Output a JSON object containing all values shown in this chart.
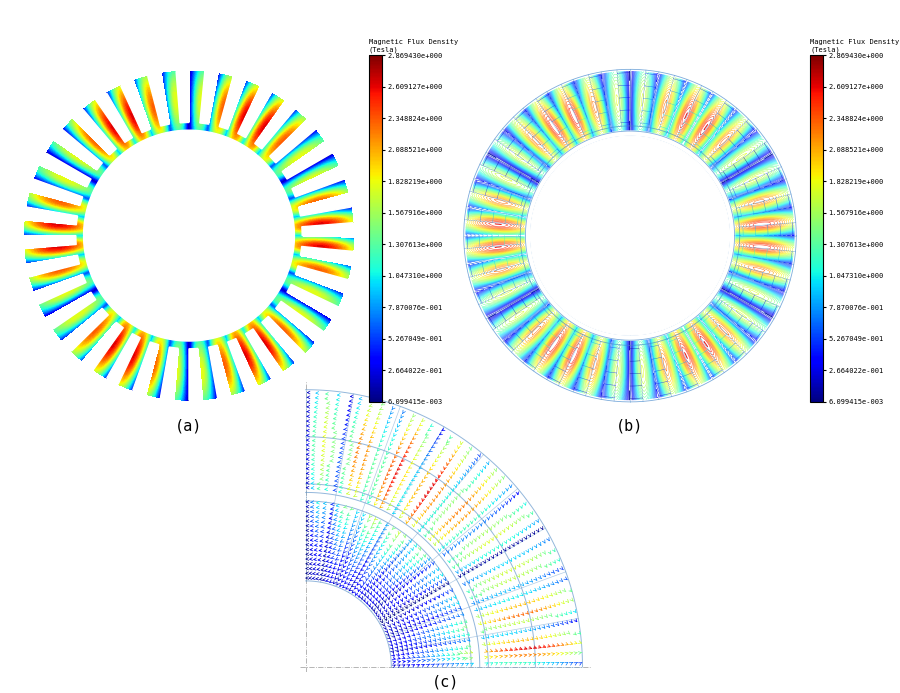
{
  "colorbar_labels": [
    "2.869430e+000",
    "2.609127e+000",
    "2.348824e+000",
    "2.088521e+000",
    "1.828219e+000",
    "1.567916e+000",
    "1.307613e+000",
    "1.047310e+000",
    "7.870076e-001",
    "5.267049e-001",
    "2.664022e-001",
    "6.099415e-003"
  ],
  "vmin": 0.006099415,
  "vmax": 2.86943,
  "label_a": "(a)",
  "label_b": "(b)",
  "label_c": "(c)",
  "cmap": "jet",
  "num_poles": 6,
  "num_slots": 36,
  "r_inner": 0.3,
  "r_rotor_outer": 0.58,
  "r_airgap_inner": 0.61,
  "r_airgap_outer": 0.64,
  "r_stator_outer": 0.97
}
